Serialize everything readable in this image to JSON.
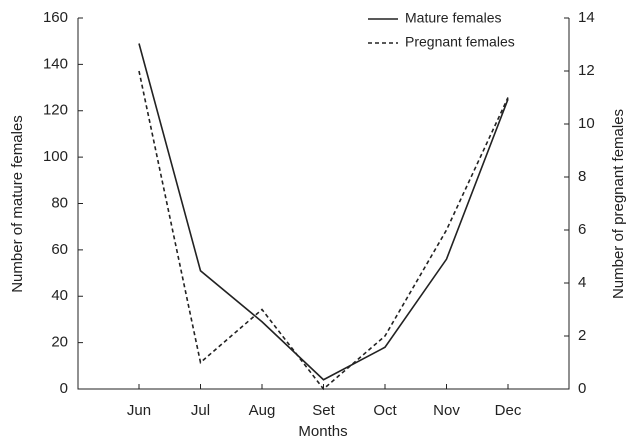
{
  "chart_data": {
    "type": "line",
    "x_label": "Months",
    "y_label": "Number of mature females",
    "y2_label": "Number of pregnant females",
    "categories": [
      "Jun",
      "Jul",
      "Aug",
      "Set",
      "Oct",
      "Nov",
      "Dec"
    ],
    "series": [
      {
        "name": "Mature females",
        "color": "#222222",
        "dash": "solid",
        "values": [
          149,
          51,
          29,
          4,
          18,
          56,
          125
        ]
      },
      {
        "name": "Pregnant females",
        "color": "#222222",
        "dash": "dashed",
        "axis": "y2",
        "values": [
          12,
          1,
          3,
          0,
          2,
          6,
          11
        ]
      }
    ],
    "ylim": [
      0,
      160
    ],
    "yticks": [
      0,
      20,
      40,
      60,
      80,
      100,
      120,
      140,
      160
    ],
    "y2lim": [
      0,
      14
    ],
    "y2ticks": [
      0,
      2,
      4,
      6,
      8,
      10,
      12,
      14
    ],
    "legend": "top-right"
  }
}
